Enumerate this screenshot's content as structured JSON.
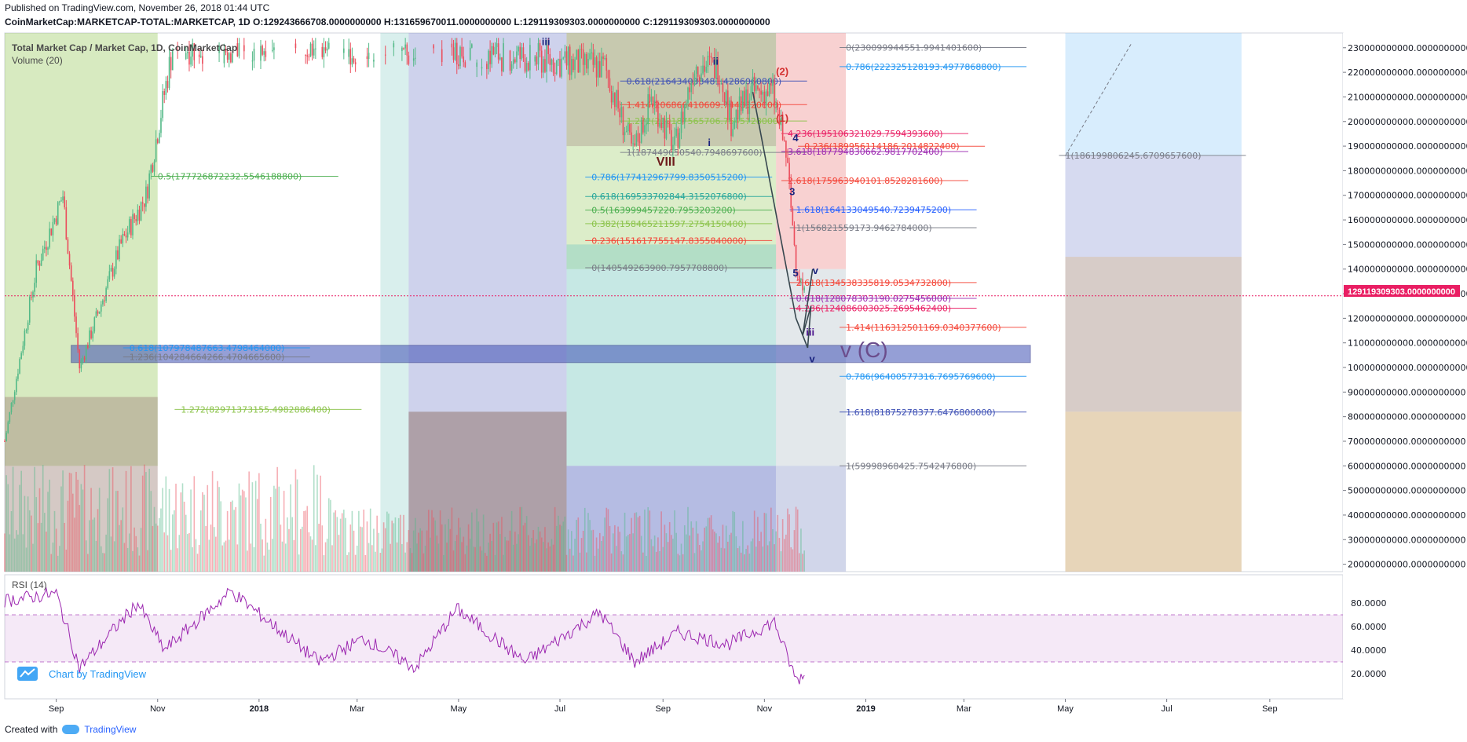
{
  "header": {
    "published": "Published on TradingView.com, November 26, 2018 01:44 UTC",
    "symbol_line": "CoinMarketCap:MARKETCAP-TOTAL:MARKETCAP, 1D  O:129243666708.0000000000 H:131659670011.0000000000 L:129119309303.0000000000 C:129119309303.0000000000"
  },
  "chart_panel": {
    "title": "Total Market Cap / Market Cap, 1D, CoinMarketCap",
    "volume_label": "Volume (20)",
    "rsi_label": "RSI (14)",
    "watermark": "Chart by TradingView",
    "last_price_badge": "129119309303.0000000000",
    "wave_label_big": "v (C)"
  },
  "footer": {
    "created_with": "Created with",
    "brand": "TradingView"
  },
  "colors": {
    "bull": "#53b987",
    "bear": "#eb4d5c",
    "rsi": "#9c27b0",
    "rsi_band": "#9c27b0",
    "price_line": "#e91e63",
    "grid": "#e9ecf1",
    "green_zone": "#8bc34a",
    "blue_zone": "#3f51b5"
  },
  "chart_data": {
    "type": "candlestick",
    "y_axis_ticks": [
      "230000000000.0000000000",
      "220000000000.0000000000",
      "210000000000.0000000000",
      "200000000000.0000000000",
      "190000000000.0000000000",
      "180000000000.0000000000",
      "170000000000.0000000000",
      "160000000000.0000000000",
      "150000000000.0000000000",
      "140000000000.0000000000",
      "130000000000.0000000000",
      "120000000000.0000000000",
      "110000000000.0000000000",
      "100000000000.0000000000",
      "90000000000.0000000000",
      "80000000000.0000000000",
      "70000000000.0000000000",
      "60000000000.0000000000",
      "50000000000.0000000000",
      "40000000000.0000000000",
      "30000000000.0000000000",
      "20000000000.0000000000"
    ],
    "y_range": [
      17000000000,
      236000000000
    ],
    "x_axis_ticks": [
      "Sep",
      "Nov",
      "2018",
      "Mar",
      "May",
      "Jul",
      "Sep",
      "Nov",
      "2019",
      "Mar",
      "May",
      "Jul",
      "Sep"
    ],
    "rsi_ticks": [
      "80.0000",
      "60.0000",
      "40.0000",
      "20.0000"
    ],
    "rsi_band": [
      30,
      70
    ],
    "close_price": 129119309303,
    "price_path": [
      [
        "2017-08-01",
        70000000000
      ],
      [
        "2017-08-20",
        140000000000
      ],
      [
        "2017-09-05",
        170000000000
      ],
      [
        "2017-09-15",
        100000000000
      ],
      [
        "2017-10-10",
        150000000000
      ],
      [
        "2017-10-25",
        170000000000
      ],
      [
        "2017-11-10",
        230000000000
      ],
      [
        "2018-04-20",
        230000000000
      ],
      [
        "2018-07-28",
        222000000000
      ],
      [
        "2018-08-14",
        187000000000
      ],
      [
        "2018-08-25",
        210000000000
      ],
      [
        "2018-09-08",
        189000000000
      ],
      [
        "2018-09-20",
        223000000000
      ],
      [
        "2018-10-05",
        222000000000
      ],
      [
        "2018-10-12",
        200000000000
      ],
      [
        "2018-10-25",
        212000000000
      ],
      [
        "2018-11-06",
        212000000000
      ],
      [
        "2018-11-14",
        187000000000
      ],
      [
        "2018-11-20",
        143000000000
      ],
      [
        "2018-11-25",
        129119309303
      ]
    ],
    "rsi_path": [
      [
        "2017-08-01",
        82
      ],
      [
        "2017-09-01",
        88
      ],
      [
        "2017-09-15",
        25
      ],
      [
        "2017-10-20",
        80
      ],
      [
        "2017-11-05",
        40
      ],
      [
        "2017-12-15",
        90
      ],
      [
        "2018-01-15",
        55
      ],
      [
        "2018-02-06",
        30
      ],
      [
        "2018-03-05",
        50
      ],
      [
        "2018-04-05",
        25
      ],
      [
        "2018-04-30",
        75
      ],
      [
        "2018-06-10",
        30
      ],
      [
        "2018-07-25",
        72
      ],
      [
        "2018-08-15",
        30
      ],
      [
        "2018-09-10",
        55
      ],
      [
        "2018-10-10",
        45
      ],
      [
        "2018-11-07",
        64
      ],
      [
        "2018-11-20",
        15
      ],
      [
        "2018-11-25",
        18
      ]
    ],
    "fib_labels": [
      {
        "text": "0(230099944551.9941401600)",
        "color": "#787b86"
      },
      {
        "text": "0.786(222325128193.4977868800)",
        "color": "#2196f3"
      },
      {
        "text": "0.618(216434038481.4286060800)",
        "color": "#3f51b5"
      },
      {
        "text": "1.414(206866410609.7448320000)",
        "color": "#f44336"
      },
      {
        "text": "1.272(200187565706.7545728000)",
        "color": "#8bc34a"
      },
      {
        "text": "4.236(195106321029.7594393600)",
        "color": "#e91e63"
      },
      {
        "text": "0.236(189956114186.2014822400)",
        "color": "#f44336"
      },
      {
        "text": "1(187449650540.7948697600)",
        "color": "#787b86"
      },
      {
        "text": "3.618(187794830662.9817702400)",
        "color": "#9c27b0"
      },
      {
        "text": "1(186199806245.6709657600)",
        "color": "#787b86"
      },
      {
        "text": "0.5(177726872232.5546188800)",
        "color": "#4caf50"
      },
      {
        "text": "0.786(177412967799.8350515200)",
        "color": "#2196f3"
      },
      {
        "text": "2.618(175963940101.8528281600)",
        "color": "#f44336"
      },
      {
        "text": "0.618(169533702844.3152076800)",
        "color": "#26a69a"
      },
      {
        "text": "0.5(163999457220.7953203200)",
        "color": "#4caf50"
      },
      {
        "text": "1.618(164133049540.7239475200)",
        "color": "#2962ff"
      },
      {
        "text": "0.382(158465211597.2754150400)",
        "color": "#8bc34a"
      },
      {
        "text": "1(156821559173.9462784000)",
        "color": "#787b86"
      },
      {
        "text": "0.236(151617755147.8355840000)",
        "color": "#f44336"
      },
      {
        "text": "0(140549263900.7957708800)",
        "color": "#787b86"
      },
      {
        "text": "2.618(134538335819.0534732800)",
        "color": "#f44336"
      },
      {
        "text": "0.618(128078303190.0275456000)",
        "color": "#9c27b0"
      },
      {
        "text": "4.236(124086003025.2695462400)",
        "color": "#e91e63"
      },
      {
        "text": "1.414(116312501169.0340377600)",
        "color": "#f44336"
      },
      {
        "text": "0.618(107978487663.4798464000)",
        "color": "#2196f3"
      },
      {
        "text": "1.236(104284664266.4704665600)",
        "color": "#787b86"
      },
      {
        "text": "0.786(96400577316.7695769600)",
        "color": "#2196f3"
      },
      {
        "text": "1.272(82971373155.4982886400)",
        "color": "#8bc34a"
      },
      {
        "text": "1.618(81875278377.6476800000)",
        "color": "#3f51b5"
      },
      {
        "text": "1(59998968425.7542476800)",
        "color": "#787b86"
      }
    ],
    "wave_labels": [
      "iii",
      "ii",
      "i",
      "v",
      "iii",
      "(2)",
      "(1)",
      "4",
      "3",
      "5",
      "v",
      "VIII"
    ]
  }
}
